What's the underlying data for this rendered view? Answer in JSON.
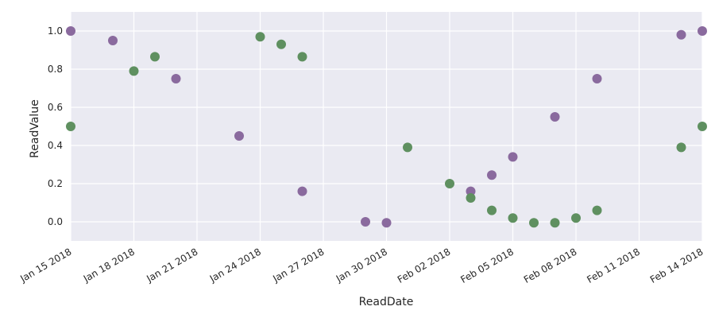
{
  "colors": {
    "background": "#eaeaf2",
    "grid": "#ffffff",
    "purple": "#8a6a9e",
    "green": "#5f9060",
    "text": "#262626"
  },
  "chart_data": {
    "type": "scatter",
    "title": "",
    "xlabel": "ReadDate",
    "ylabel": "ReadValue",
    "xlim": [
      "2018-01-15",
      "2018-02-14"
    ],
    "ylim": [
      -0.1,
      1.1
    ],
    "grid": true,
    "legend": "none",
    "x_ticks": [
      {
        "date": "2018-01-15",
        "label": "Jan 15 2018"
      },
      {
        "date": "2018-01-18",
        "label": "Jan 18 2018"
      },
      {
        "date": "2018-01-21",
        "label": "Jan 21 2018"
      },
      {
        "date": "2018-01-24",
        "label": "Jan 24 2018"
      },
      {
        "date": "2018-01-27",
        "label": "Jan 27 2018"
      },
      {
        "date": "2018-01-30",
        "label": "Jan 30 2018"
      },
      {
        "date": "2018-02-02",
        "label": "Feb 02 2018"
      },
      {
        "date": "2018-02-05",
        "label": "Feb 05 2018"
      },
      {
        "date": "2018-02-08",
        "label": "Feb 08 2018"
      },
      {
        "date": "2018-02-11",
        "label": "Feb 11 2018"
      },
      {
        "date": "2018-02-14",
        "label": "Feb 14 2018"
      }
    ],
    "y_ticks": [
      {
        "value": 0.0,
        "label": "0.0"
      },
      {
        "value": 0.2,
        "label": "0.2"
      },
      {
        "value": 0.4,
        "label": "0.4"
      },
      {
        "value": 0.6,
        "label": "0.6"
      },
      {
        "value": 0.8,
        "label": "0.8"
      },
      {
        "value": 1.0,
        "label": "1.0"
      }
    ],
    "series": [
      {
        "color": "#8a6a9e",
        "points": [
          {
            "x": "2018-01-15",
            "y": 1.0
          },
          {
            "x": "2018-01-17",
            "y": 0.95
          },
          {
            "x": "2018-01-20",
            "y": 0.75
          },
          {
            "x": "2018-01-23",
            "y": 0.45
          },
          {
            "x": "2018-01-26",
            "y": 0.16
          },
          {
            "x": "2018-01-29",
            "y": 0.0
          },
          {
            "x": "2018-01-30",
            "y": -0.005
          },
          {
            "x": "2018-02-03",
            "y": 0.16
          },
          {
            "x": "2018-02-04",
            "y": 0.245
          },
          {
            "x": "2018-02-05",
            "y": 0.34
          },
          {
            "x": "2018-02-07",
            "y": 0.55
          },
          {
            "x": "2018-02-09",
            "y": 0.75
          },
          {
            "x": "2018-02-13",
            "y": 0.98
          },
          {
            "x": "2018-02-14",
            "y": 1.0
          }
        ]
      },
      {
        "color": "#5f9060",
        "points": [
          {
            "x": "2018-01-15",
            "y": 0.5
          },
          {
            "x": "2018-01-18",
            "y": 0.79
          },
          {
            "x": "2018-01-19",
            "y": 0.865
          },
          {
            "x": "2018-01-24",
            "y": 0.97
          },
          {
            "x": "2018-01-25",
            "y": 0.93
          },
          {
            "x": "2018-01-26",
            "y": 0.865
          },
          {
            "x": "2018-01-31",
            "y": 0.39
          },
          {
            "x": "2018-02-02",
            "y": 0.2
          },
          {
            "x": "2018-02-03",
            "y": 0.125
          },
          {
            "x": "2018-02-04",
            "y": 0.06
          },
          {
            "x": "2018-02-05",
            "y": 0.02
          },
          {
            "x": "2018-02-06",
            "y": -0.005
          },
          {
            "x": "2018-02-07",
            "y": -0.005
          },
          {
            "x": "2018-02-08",
            "y": 0.02
          },
          {
            "x": "2018-02-09",
            "y": 0.06
          },
          {
            "x": "2018-02-13",
            "y": 0.39
          },
          {
            "x": "2018-02-14",
            "y": 0.5
          }
        ]
      }
    ]
  }
}
